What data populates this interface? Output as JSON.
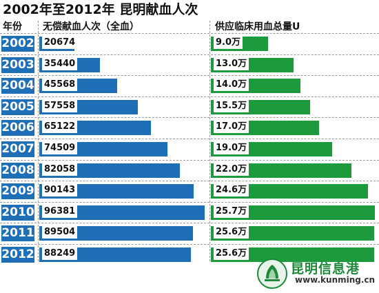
{
  "title": "2002年至2012年 昆明献血人次",
  "headers": {
    "year": "年份",
    "donations": "无偿献血人次（全血）",
    "supply": "供应临床用血总量U"
  },
  "colors": {
    "donations": "#1f6fb7",
    "supply": "#1d9a3e",
    "year_box": "#1f6fb7"
  },
  "rows": [
    {
      "year": "2002",
      "donations": "20674",
      "supply": "9.0万"
    },
    {
      "year": "2003",
      "donations": "35440",
      "supply": "13.0万"
    },
    {
      "year": "2004",
      "donations": "45568",
      "supply": "14.0万"
    },
    {
      "year": "2005",
      "donations": "57558",
      "supply": "15.5万"
    },
    {
      "year": "2006",
      "donations": "65122",
      "supply": "17.0万"
    },
    {
      "year": "2007",
      "donations": "74509",
      "supply": "19.0万"
    },
    {
      "year": "2008",
      "donations": "82058",
      "supply": "22.0万"
    },
    {
      "year": "2009",
      "donations": "90143",
      "supply": "24.6万"
    },
    {
      "year": "2010",
      "donations": "96381",
      "supply": "25.7万"
    },
    {
      "year": "2011",
      "donations": "89504",
      "supply": "25.6万"
    },
    {
      "year": "2012",
      "donations": "88249",
      "supply": "25.6万"
    }
  ],
  "chart_data": {
    "type": "bar",
    "orientation": "horizontal",
    "title": "2002年至2012年 昆明献血人次",
    "categories": [
      "2002",
      "2003",
      "2004",
      "2005",
      "2006",
      "2007",
      "2008",
      "2009",
      "2010",
      "2011",
      "2012"
    ],
    "series": [
      {
        "name": "无偿献血人次（全血）",
        "values": [
          20674,
          35440,
          45568,
          57558,
          65122,
          74509,
          82058,
          90143,
          96381,
          89504,
          88249
        ]
      },
      {
        "name": "供应临床用血总量U",
        "unit": "万",
        "values": [
          9.0,
          13.0,
          14.0,
          15.5,
          17.0,
          19.0,
          22.0,
          24.6,
          25.7,
          25.6,
          25.6
        ]
      }
    ],
    "grid": false,
    "legend": "none"
  },
  "watermark": {
    "icon": "kunming-info-hub-logo-icon",
    "name": "昆明信息港",
    "url": "www.kunming.cn"
  }
}
